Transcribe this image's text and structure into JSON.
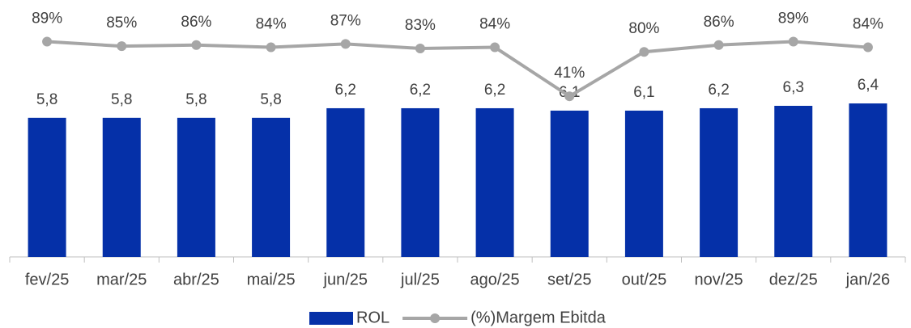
{
  "chart_data": {
    "type": "bar",
    "categories": [
      "fev/25",
      "mar/25",
      "abr/25",
      "mai/25",
      "jun/25",
      "jul/25",
      "ago/25",
      "set/25",
      "out/25",
      "nov/25",
      "dez/25",
      "jan/26"
    ],
    "series": [
      {
        "name": "ROL",
        "type": "bar",
        "color": "#0530a8",
        "values": [
          5.8,
          5.8,
          5.8,
          5.8,
          6.2,
          6.2,
          6.2,
          6.1,
          6.1,
          6.2,
          6.3,
          6.4
        ],
        "value_labels": [
          "5,8",
          "5,8",
          "5,8",
          "5,8",
          "6,2",
          "6,2",
          "6,2",
          "6,1",
          "6,1",
          "6,2",
          "6,3",
          "6,4"
        ]
      },
      {
        "name": "(%)Margem Ebitda",
        "type": "line",
        "axis": "y2",
        "color": "#a6a6a6",
        "values": [
          89,
          85,
          86,
          84,
          87,
          83,
          84,
          41,
          80,
          86,
          89,
          84
        ],
        "value_labels": [
          "89%",
          "85%",
          "86%",
          "84%",
          "87%",
          "83%",
          "84%",
          "41%",
          "80%",
          "86%",
          "89%",
          "84%"
        ]
      }
    ],
    "ylim": [
      0,
      9.5
    ],
    "y2lim": [
      -100,
      100
    ],
    "legend": "bottom"
  }
}
